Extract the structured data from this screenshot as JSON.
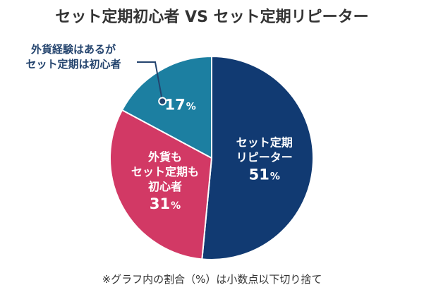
{
  "chart_data": {
    "type": "pie",
    "title": "セット定期初心者 VS セット定期リピーター",
    "slices": [
      {
        "label_lines": [
          "セット定期",
          "リピーター"
        ],
        "value": 51,
        "color": "#113a72"
      },
      {
        "label_lines": [
          "外貨も",
          "セット定期も",
          "初心者"
        ],
        "value": 31,
        "color": "#d23965"
      },
      {
        "label_lines": [],
        "value": 17,
        "color": "#1c7fa1"
      }
    ],
    "unit": "%",
    "callout": {
      "lines": [
        "外貨経験はあるが",
        "セット定期は初心者"
      ],
      "target_slice": 2,
      "color": "#24446e"
    },
    "footnote": "※グラフ内の割合（%）は小数点以下切り捨て"
  }
}
